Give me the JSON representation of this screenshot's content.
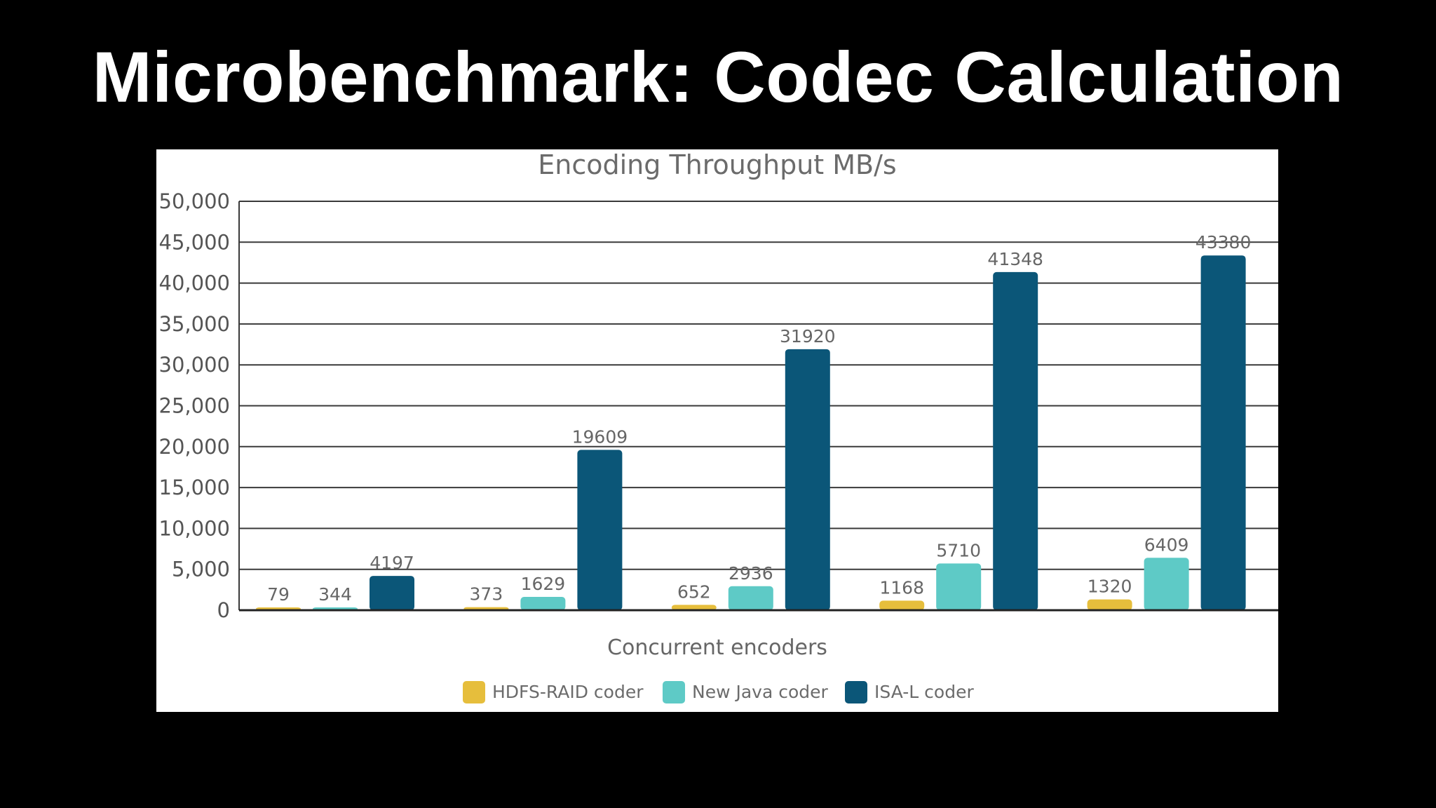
{
  "slide": {
    "title": "Microbenchmark: Codec Calculation"
  },
  "chart_data": {
    "type": "bar",
    "title": "Encoding Throughput MB/s",
    "xlabel": "Concurrent encoders",
    "ylabel": "",
    "ylim": [
      0,
      50000
    ],
    "yticks": [
      0,
      5000,
      10000,
      15000,
      20000,
      25000,
      30000,
      35000,
      40000,
      45000,
      50000
    ],
    "ytick_labels": [
      "0",
      "5,000",
      "10,000",
      "15,000",
      "20,000",
      "25,000",
      "30,000",
      "35,000",
      "40,000",
      "45,000",
      "50,000"
    ],
    "grid": true,
    "legend_position": "bottom",
    "categories": [
      "",
      "",
      "",
      "",
      ""
    ],
    "series": [
      {
        "name": "HDFS-RAID coder",
        "color": "#e6be3c",
        "values": [
          79,
          373,
          652,
          1168,
          1320
        ]
      },
      {
        "name": "New Java coder",
        "color": "#5ecac6",
        "values": [
          344,
          1629,
          2936,
          5710,
          6409
        ]
      },
      {
        "name": "ISA-L coder",
        "color": "#0b5678",
        "values": [
          4197,
          19609,
          31920,
          41348,
          43380
        ]
      }
    ]
  }
}
